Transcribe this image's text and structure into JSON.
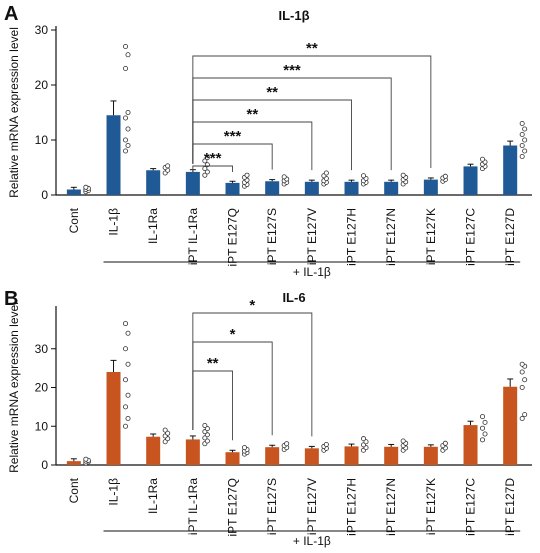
{
  "chart_data": [
    {
      "type": "bar",
      "panel": "A",
      "title": "IL-1β",
      "ylabel": "Relative mRNA expression level",
      "xlabel": "",
      "ylim": [
        0,
        30
      ],
      "yticks": [
        0,
        10,
        20,
        30
      ],
      "color": "#1f5a96",
      "categories": [
        "Cont",
        "IL-1β",
        "IL-1Ra",
        "iPT IL-1Ra",
        "iPT E127Q",
        "iPT E127S",
        "iPT E127V",
        "iPT E127H",
        "iPT E127N",
        "iPT E127K",
        "iPT E127C",
        "iPT E127D"
      ],
      "values": [
        1.0,
        14.5,
        4.5,
        4.2,
        2.2,
        2.5,
        2.4,
        2.4,
        2.4,
        2.8,
        5.2,
        9.0
      ],
      "errors": [
        0.4,
        2.6,
        0.3,
        0.4,
        0.3,
        0.3,
        0.3,
        0.3,
        0.3,
        0.3,
        0.4,
        0.8
      ],
      "points": [
        [
          0.6,
          0.8,
          1.0,
          1.2,
          1.4
        ],
        [
          8.0,
          9.0,
          10.0,
          12.0,
          14.0,
          15.0,
          23.0,
          25.5,
          27.0
        ],
        [
          4.0,
          4.5,
          5.0,
          5.3
        ],
        [
          3.6,
          4.2,
          4.8,
          5.5,
          6.2,
          6.8
        ],
        [
          1.6,
          1.9,
          2.3,
          2.7,
          3.2,
          3.6
        ],
        [
          2.0,
          2.3,
          2.6,
          2.9,
          3.3
        ],
        [
          2.0,
          2.3,
          2.6,
          3.0,
          3.5,
          4.0
        ],
        [
          2.0,
          2.3,
          2.6,
          3.0,
          3.5
        ],
        [
          2.0,
          2.4,
          2.8,
          3.2,
          3.6
        ],
        [
          2.5,
          2.8,
          3.1,
          3.4
        ],
        [
          4.8,
          5.2,
          5.6,
          6.0,
          6.5
        ],
        [
          7.0,
          8.0,
          9.0,
          10.0,
          11.0,
          12.0,
          13.0
        ]
      ],
      "brackets": [
        {
          "from": "iPT IL-1Ra",
          "to": "iPT E127Q",
          "label": "***"
        },
        {
          "from": "iPT IL-1Ra",
          "to": "iPT E127S",
          "label": "***"
        },
        {
          "from": "iPT IL-1Ra",
          "to": "iPT E127V",
          "label": "**"
        },
        {
          "from": "iPT IL-1Ra",
          "to": "iPT E127H",
          "label": "**"
        },
        {
          "from": "iPT IL-1Ra",
          "to": "iPT E127N",
          "label": "***"
        },
        {
          "from": "iPT IL-1Ra",
          "to": "iPT E127K",
          "label": "**"
        }
      ],
      "treatment_label": "+ IL-1β"
    },
    {
      "type": "bar",
      "panel": "B",
      "title": "IL-6",
      "ylabel": "Relative mRNA expression level",
      "xlabel": "",
      "ylim": [
        0,
        40
      ],
      "yticks": [
        0,
        10,
        20,
        30
      ],
      "color": "#c8541f",
      "categories": [
        "Cont",
        "IL-1β",
        "IL-1Ra",
        "iPT IL-1Ra",
        "iPT E127Q",
        "iPT E127S",
        "iPT E127V",
        "iPT E127H",
        "iPT E127N",
        "iPT E127K",
        "iPT E127C",
        "iPT E127D"
      ],
      "values": [
        1.0,
        24.0,
        7.3,
        6.6,
        3.3,
        4.6,
        4.3,
        4.8,
        4.7,
        4.7,
        10.3,
        20.2
      ],
      "errors": [
        0.6,
        3.0,
        0.7,
        0.9,
        0.5,
        0.5,
        0.5,
        0.6,
        0.6,
        0.5,
        1.0,
        2.0
      ],
      "points": [
        [
          0.5,
          0.8,
          1.0,
          1.2,
          1.5
        ],
        [
          10.0,
          12.0,
          15.0,
          18.0,
          22.0,
          26.0,
          30.0,
          34.0,
          36.5
        ],
        [
          6.0,
          6.8,
          7.5,
          8.2,
          9.0
        ],
        [
          5.5,
          6.2,
          7.0,
          7.8,
          8.6,
          9.4,
          10.2
        ],
        [
          2.8,
          3.2,
          3.6,
          4.0,
          4.5
        ],
        [
          4.0,
          4.5,
          5.0,
          5.5
        ],
        [
          3.8,
          4.3,
          4.8,
          5.3
        ],
        [
          3.8,
          4.5,
          5.2,
          6.0,
          6.8
        ],
        [
          3.8,
          4.4,
          5.0,
          5.6,
          6.2
        ],
        [
          3.8,
          4.4,
          5.0,
          5.6
        ],
        [
          6.5,
          8.0,
          9.5,
          11.0,
          12.5
        ],
        [
          12.0,
          13.0,
          20.0,
          22.0,
          24.0,
          25.5,
          26.0
        ]
      ],
      "brackets": [
        {
          "from": "iPT IL-1Ra",
          "to": "iPT E127Q",
          "label": "**"
        },
        {
          "from": "iPT IL-1Ra",
          "to": "iPT E127S",
          "label": "*"
        },
        {
          "from": "iPT IL-1Ra",
          "to": "iPT E127V",
          "label": "*"
        }
      ],
      "treatment_label": "+ IL-1β"
    }
  ]
}
